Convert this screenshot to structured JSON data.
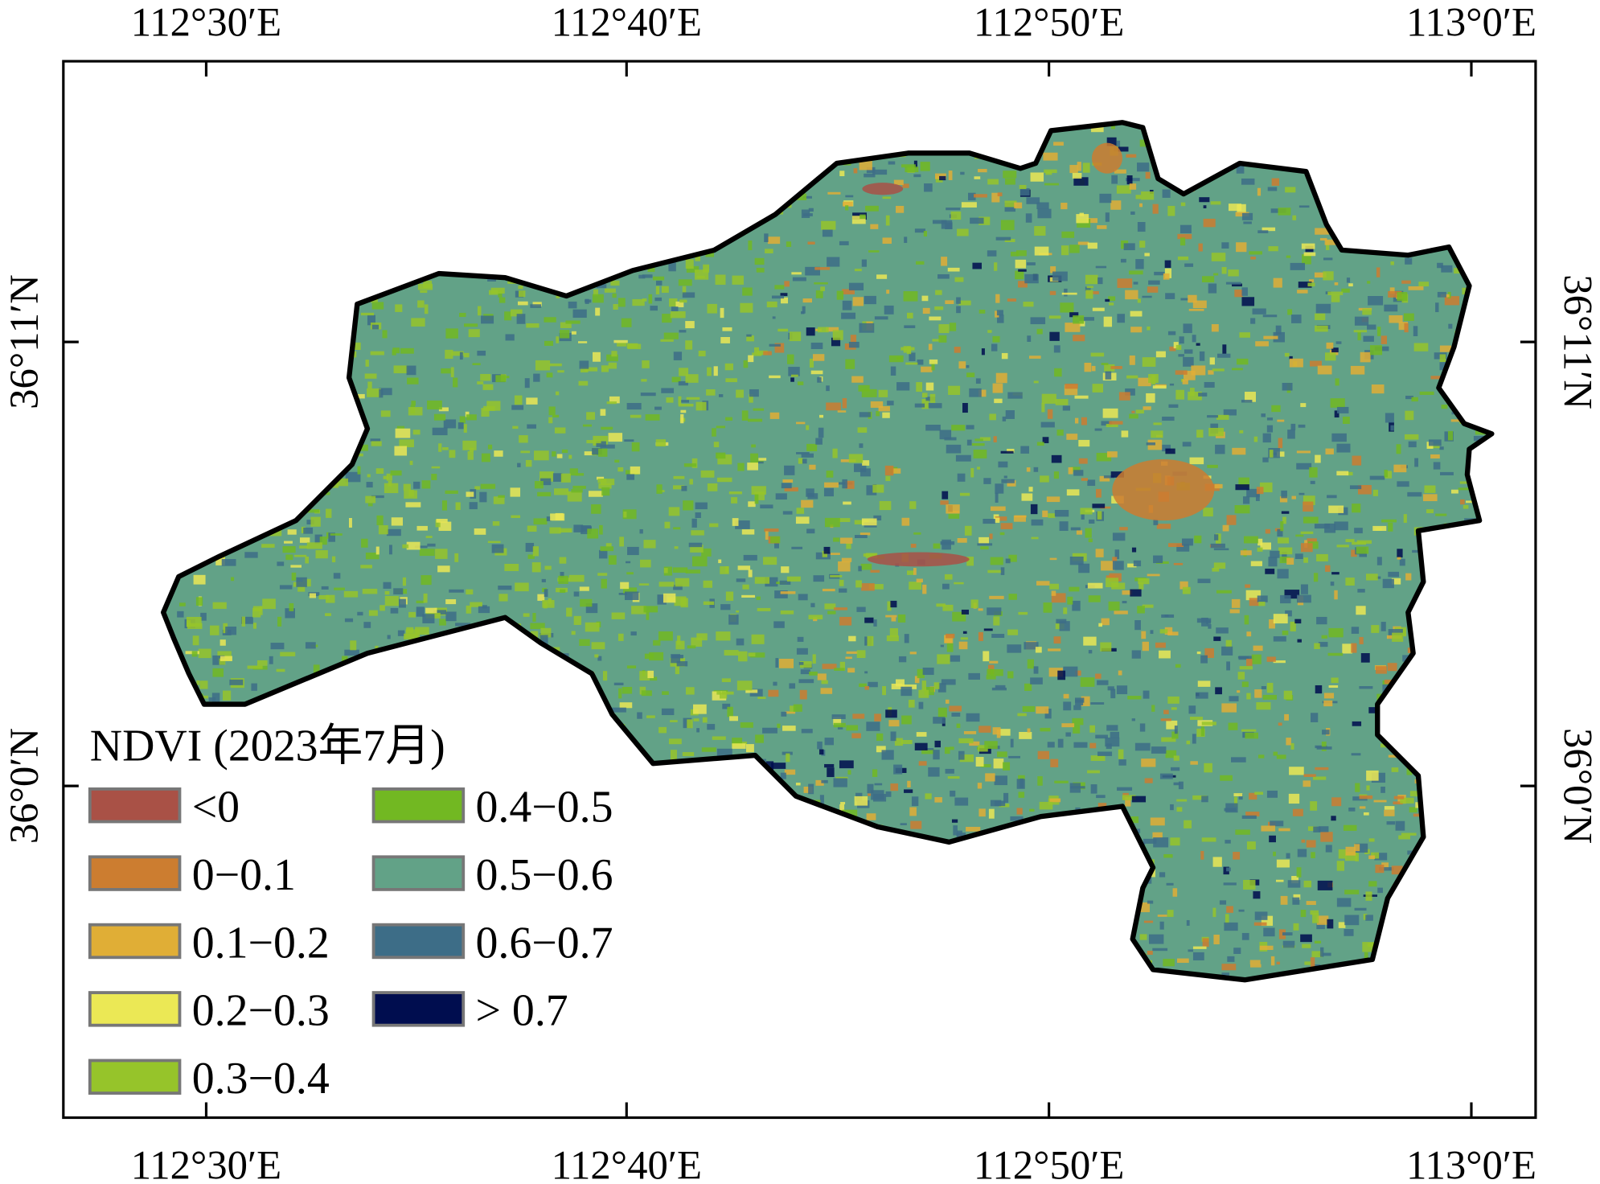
{
  "axes": {
    "x_ticks": [
      "112°30′E",
      "112°40′E",
      "112°50′E",
      "113°0′E"
    ],
    "y_ticks": [
      "36°11′N",
      "36°0′N"
    ]
  },
  "legend": {
    "title": "NDVI (2023年7月)",
    "items": [
      {
        "label": "<0",
        "color": "#a95146"
      },
      {
        "label": "0−0.1",
        "color": "#cc7d30"
      },
      {
        "label": "0.1−0.2",
        "color": "#e0ae36"
      },
      {
        "label": "0.2−0.3",
        "color": "#ebe855"
      },
      {
        "label": "0.3−0.4",
        "color": "#96c42a"
      },
      {
        "label": "0.4−0.5",
        "color": "#72b822"
      },
      {
        "label": "0.5−0.6",
        "color": "#62a287"
      },
      {
        "label": "0.6−0.7",
        "color": "#3d6d87"
      },
      {
        "label": "> 0.7",
        "color": "#000d4f"
      }
    ]
  },
  "colors": {
    "boundary": "#000000",
    "frame": "#000000",
    "swatch_border": "#777777"
  }
}
